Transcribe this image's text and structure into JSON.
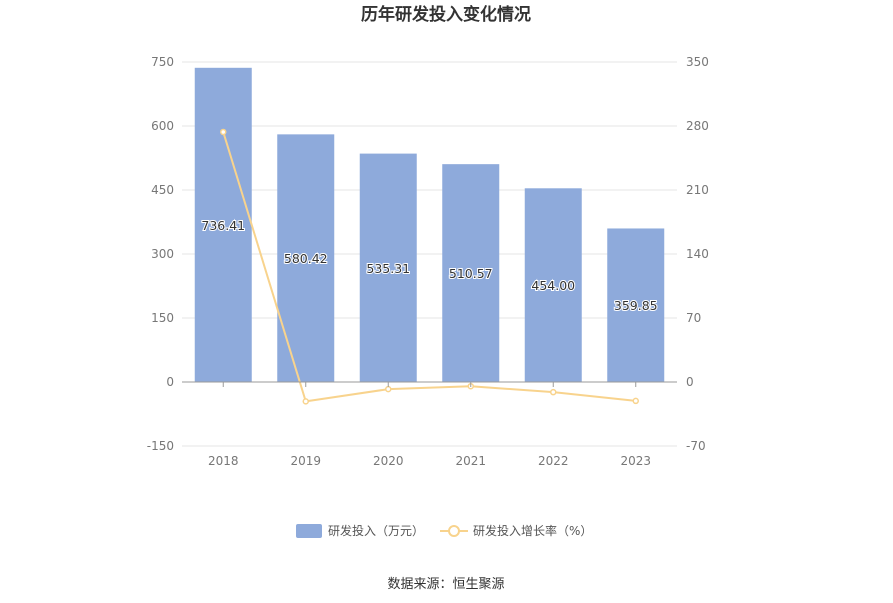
{
  "chart_data": {
    "type": "bar",
    "title": "历年研发投入变化情况",
    "categories": [
      "2018",
      "2019",
      "2020",
      "2021",
      "2022",
      "2023"
    ],
    "series": [
      {
        "name": "研发投入（万元）",
        "type": "bar",
        "axis": "left",
        "values": [
          736.41,
          580.42,
          535.31,
          510.57,
          454.0,
          359.85
        ],
        "labels": [
          "736.41",
          "580.42",
          "535.31",
          "510.57",
          "454.00",
          "359.85"
        ],
        "color": "#8eaadb"
      },
      {
        "name": "研发投入增长率（%）",
        "type": "line",
        "axis": "right",
        "values": [
          273.5,
          -21.2,
          -7.8,
          -4.6,
          -11.1,
          -20.7
        ],
        "color": "#f8d38d"
      }
    ],
    "y_left": {
      "min": -150,
      "max": 750,
      "ticks": [
        "-150",
        "0",
        "150",
        "300",
        "450",
        "600",
        "750"
      ]
    },
    "y_right": {
      "min": -70,
      "max": 350,
      "ticks": [
        "-70",
        "0",
        "70",
        "140",
        "210",
        "280",
        "350"
      ]
    },
    "grid": true,
    "legend_position": "bottom"
  },
  "source_text": "数据来源：恒生聚源"
}
